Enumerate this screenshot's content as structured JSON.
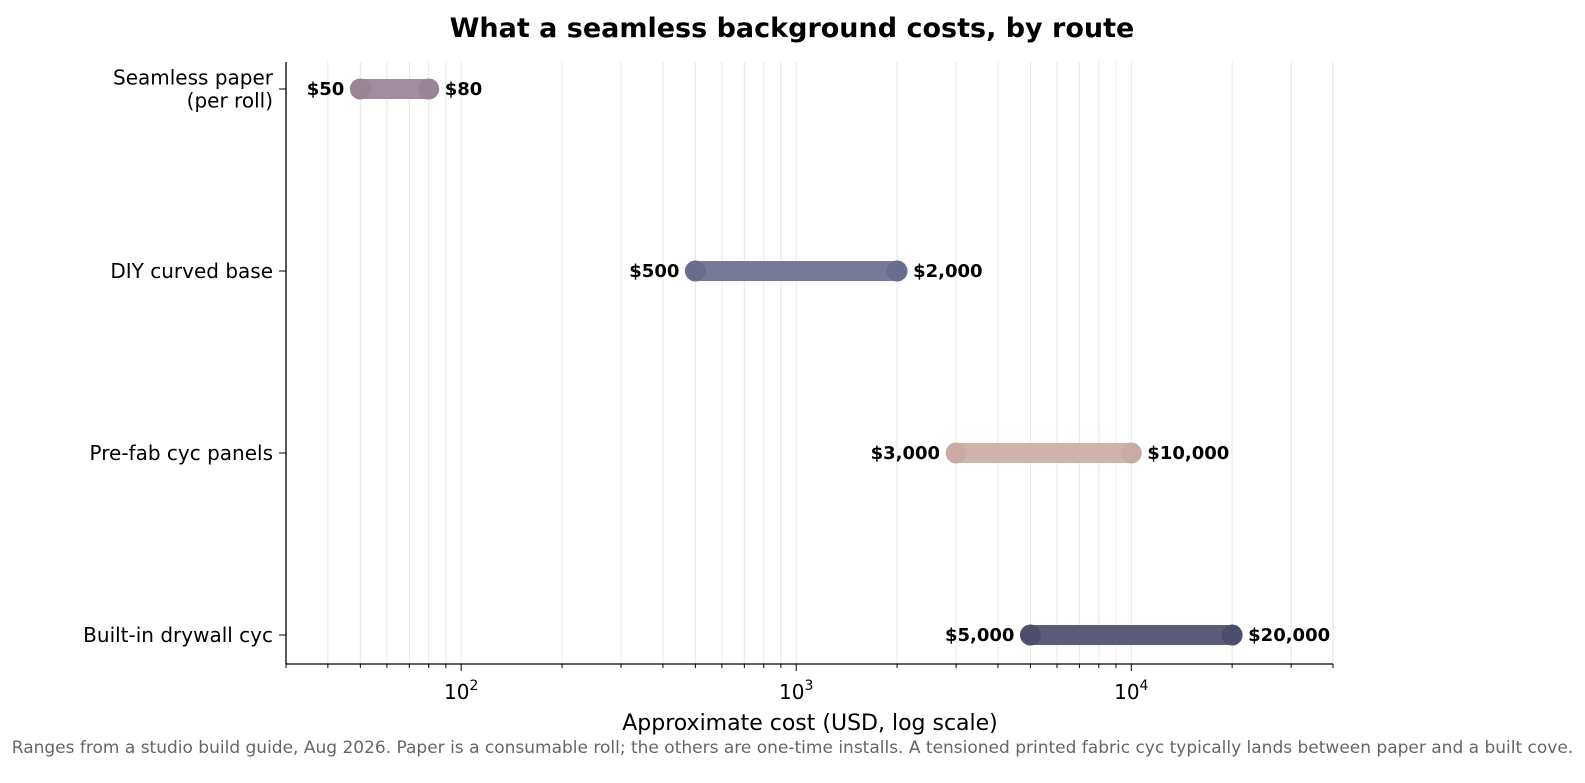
{
  "chart_data": {
    "type": "range",
    "title": "What a seamless background costs, by route",
    "xlabel": "Approximate cost (USD, log scale)",
    "ylabel": "",
    "xscale": "log",
    "xlim": [
      30,
      40000
    ],
    "xticks": [
      {
        "value": 100,
        "base": "10",
        "exp": "2"
      },
      {
        "value": 1000,
        "base": "10",
        "exp": "3"
      },
      {
        "value": 10000,
        "base": "10",
        "exp": "4"
      }
    ],
    "grid": "vertical, major and minor",
    "legend": "none",
    "categories": [
      {
        "label_lines": [
          "Seamless paper",
          "(per roll)"
        ],
        "low": 50,
        "high": 80,
        "low_label": "$50",
        "high_label": "$80",
        "color": "#a08e9e"
      },
      {
        "label_lines": [
          "DIY curved base"
        ],
        "low": 500,
        "high": 2000,
        "low_label": "$500",
        "high_label": "$2,000",
        "color": "#77799a"
      },
      {
        "label_lines": [
          "Pre-fab cyc panels"
        ],
        "low": 3000,
        "high": 10000,
        "low_label": "$3,000",
        "high_label": "$10,000",
        "color": "#ceb3ab"
      },
      {
        "label_lines": [
          "Built-in drywall cyc"
        ],
        "low": 5000,
        "high": 20000,
        "low_label": "$5,000",
        "high_label": "$20,000",
        "color": "#5a5c78"
      }
    ],
    "endpoint_colors": [
      "#978596",
      "#6b6d8f",
      "#c8aba3",
      "#4c4e6b"
    ]
  },
  "footnote": "Ranges from a studio build guide, Aug 2026. Paper is a consumable roll; the others are one-time installs. A tensioned printed fabric cyc typically lands between paper and a built cove."
}
